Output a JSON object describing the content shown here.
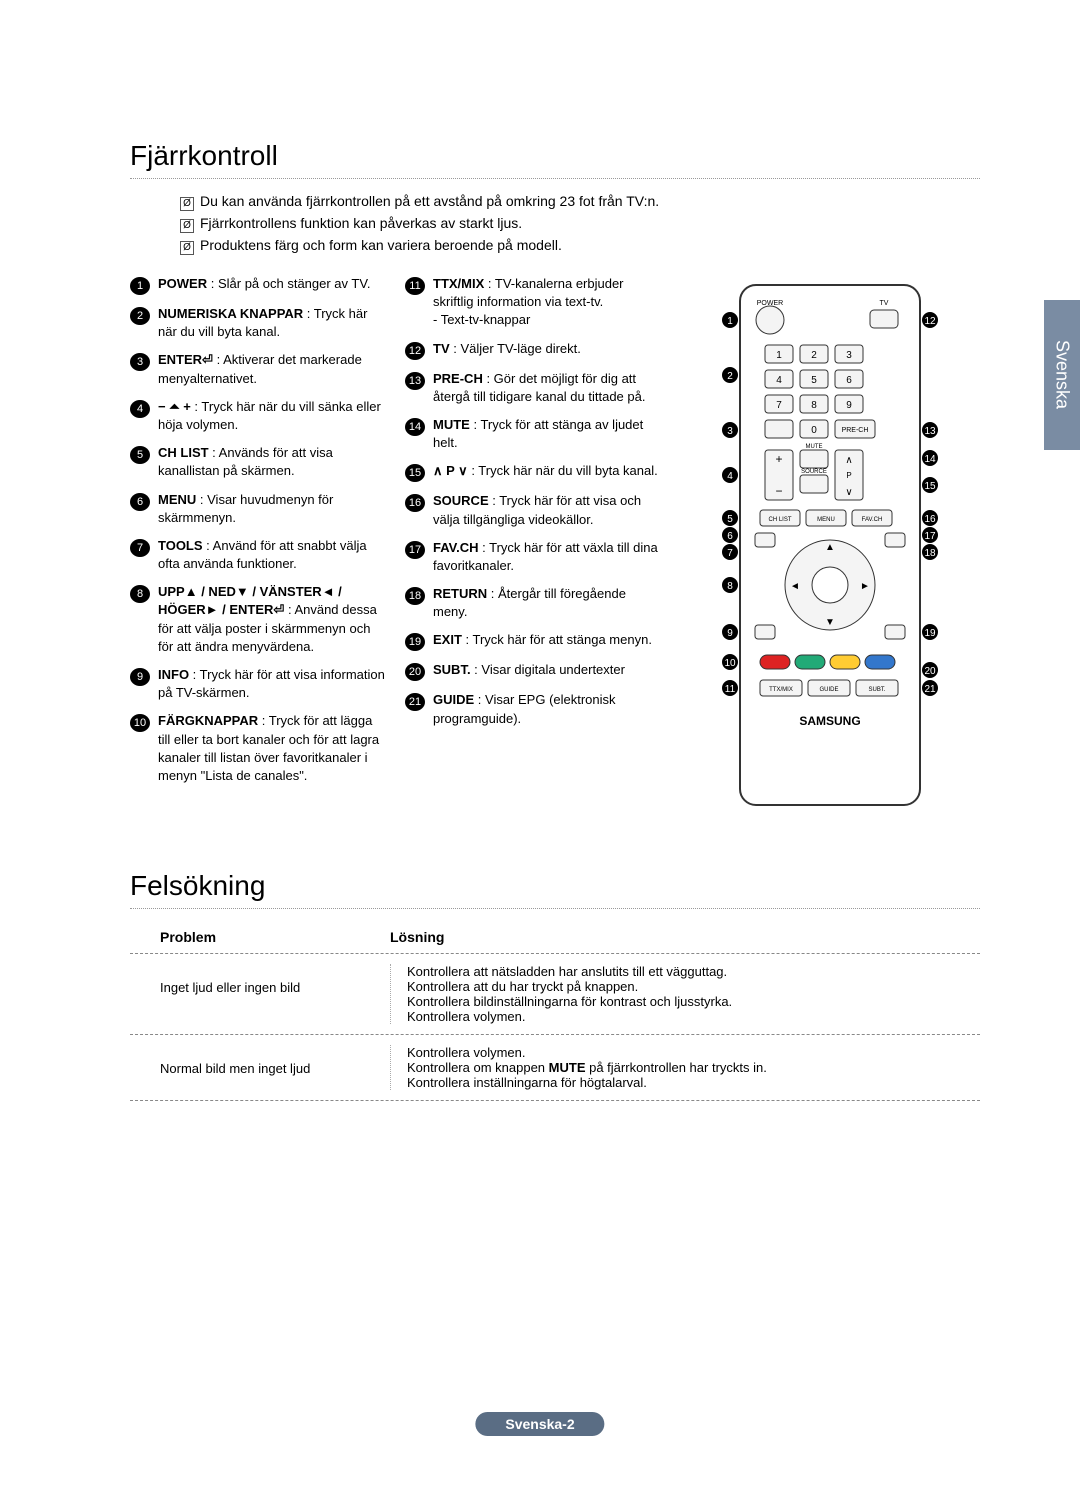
{
  "side_tab": "Svenska",
  "section1": {
    "title": "Fjärrkontroll",
    "notes": [
      "Du kan använda fjärrkontrollen på ett avstånd på omkring 23 fot från TV:n.",
      "Fjärrkontrollens funktion kan påverkas av starkt ljus.",
      "Produktens färg och form kan variera beroende på modell."
    ],
    "col1": [
      {
        "n": "1",
        "bold": "POWER",
        "text": " : Slår på och stänger av TV."
      },
      {
        "n": "2",
        "bold": "NUMERISKA KNAPPAR",
        "text": " : Tryck här när du vill byta kanal."
      },
      {
        "n": "3",
        "bold": "ENTER⏎",
        "text": " : Aktiverar det markerade menyalternativet."
      },
      {
        "n": "4",
        "bold": "− ⏶ +",
        "text": " : Tryck här när du vill sänka eller höja volymen."
      },
      {
        "n": "5",
        "bold": "CH LIST",
        "text": " : Används för att visa kanallistan på skärmen."
      },
      {
        "n": "6",
        "bold": "MENU",
        "text": " : Visar huvudmenyn för skärmmenyn."
      },
      {
        "n": "7",
        "bold": "TOOLS",
        "text": " : Använd för att snabbt välja ofta använda funktioner."
      },
      {
        "n": "8",
        "bold": "UPP▲ / NED▼ / VÄNSTER◄ / HÖGER► / ENTER⏎",
        "text": " : Använd dessa för att välja poster i skärmmenyn och för att ändra menyvärdena."
      },
      {
        "n": "9",
        "bold": "INFO",
        "text": " : Tryck här för att visa information på TV-skärmen."
      },
      {
        "n": "10",
        "bold": "FÄRGKNAPPAR",
        "text": " : Tryck för att lägga till eller ta bort kanaler och för att lagra kanaler till listan över favoritkanaler i menyn \"Lista de canales\"."
      }
    ],
    "col2": [
      {
        "n": "11",
        "bold": "TTX/MIX",
        "text": " : TV-kanalerna erbjuder skriftlig information via text-tv.",
        "extra": "- Text-tv-knappar"
      },
      {
        "n": "12",
        "bold": "TV",
        "text": " : Väljer TV-läge direkt."
      },
      {
        "n": "13",
        "bold": "PRE-CH",
        "text": " : Gör det möjligt för dig att återgå till tidigare kanal du tittade på."
      },
      {
        "n": "14",
        "bold": "MUTE",
        "text": " : Tryck för att stänga av ljudet helt."
      },
      {
        "n": "15",
        "bold": "∧ P ∨",
        "text": " : Tryck här när du vill byta kanal."
      },
      {
        "n": "16",
        "bold": "SOURCE",
        "text": " : Tryck här för att visa och välja tillgängliga videokällor."
      },
      {
        "n": "17",
        "bold": "FAV.CH",
        "text": " : Tryck här för att växla till dina favoritkanaler."
      },
      {
        "n": "18",
        "bold": "RETURN",
        "text": " : Återgår till föregående meny."
      },
      {
        "n": "19",
        "bold": "EXIT",
        "text": " : Tryck här för att stänga menyn."
      },
      {
        "n": "20",
        "bold": "SUBT.",
        "text": " : Visar digitala undertexter"
      },
      {
        "n": "21",
        "bold": "GUIDE",
        "text": " : Visar EPG (elektronisk programguide)."
      }
    ]
  },
  "section2": {
    "title": "Felsökning",
    "head_problem": "Problem",
    "head_solution": "Lösning",
    "rows": [
      {
        "p": "Inget ljud eller ingen bild",
        "s": "Kontrollera att nätsladden har anslutits till ett vägguttag.\nKontrollera att du har tryckt på knappen.\nKontrollera bildinställningarna för kontrast och ljusstyrka.\nKontrollera volymen."
      },
      {
        "p": "Normal bild men inget ljud",
        "s": "Kontrollera volymen.\nKontrollera om knappen MUTE på fjärrkontrollen har tryckts in.\nKontrollera inställningarna för högtalarval."
      }
    ]
  },
  "remote": {
    "labels": {
      "power": "POWER",
      "tv": "TV",
      "mute": "MUTE",
      "source": "SOURCE",
      "chlist": "CH LIST",
      "menu": "MENU",
      "favch": "FAV.CH",
      "prech": "PRE-CH",
      "ttx": "TTX/MIX",
      "guide": "GUIDE",
      "subt": "SUBT.",
      "brand": "SAMSUNG"
    },
    "colors": {
      "body": "#ffffff",
      "border": "#333333",
      "button": "#f4f4f4",
      "red": "#d22",
      "green": "#2a7",
      "yellow": "#fc3",
      "blue": "#37c"
    }
  },
  "page_label": "Svenska-2"
}
